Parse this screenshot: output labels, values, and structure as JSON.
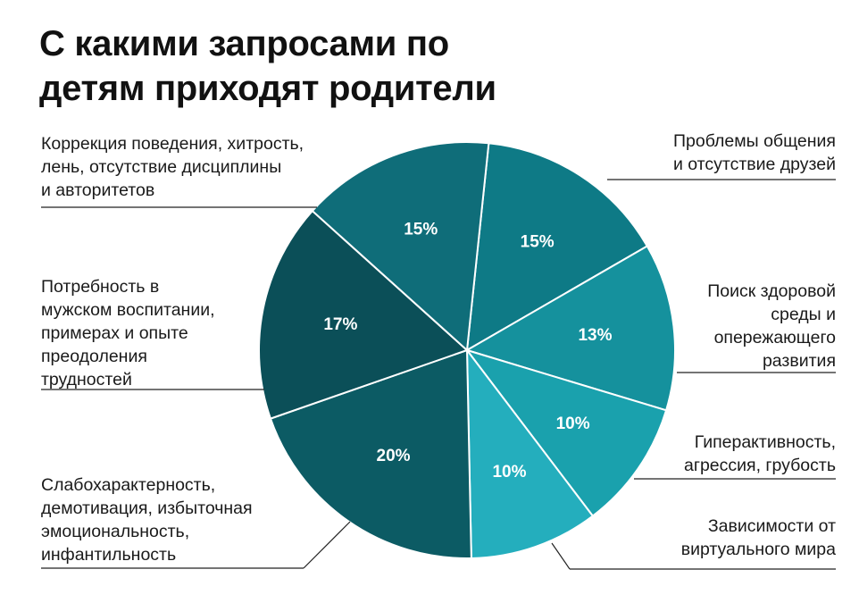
{
  "chart_data": {
    "type": "pie",
    "title": [
      "С какими запросами по",
      "детям приходят родители"
    ],
    "slices": [
      {
        "lines": [
          "Проблемы общения",
          "и отсутствие друзей"
        ],
        "value": 15,
        "display": "15%",
        "color": "#0e7a86",
        "side": "right"
      },
      {
        "lines": [
          "Поиск здоровой",
          "среды и",
          "опережающего",
          "развития"
        ],
        "value": 13,
        "display": "13%",
        "color": "#15919d",
        "side": "right"
      },
      {
        "lines": [
          "Гиперактивность,",
          "агрессия, грубость"
        ],
        "value": 10,
        "display": "10%",
        "color": "#1aa1ad",
        "side": "right"
      },
      {
        "lines": [
          "Зависимости от",
          "виртуального мира"
        ],
        "value": 10,
        "display": "10%",
        "color": "#24aebd",
        "side": "right"
      },
      {
        "lines": [
          "Слабохарактерность,",
          "демотивация, избыточная",
          "эмоциональность,",
          "инфантильность"
        ],
        "value": 20,
        "display": "20%",
        "color": "#0c5b64",
        "side": "left"
      },
      {
        "lines": [
          "Потребность в",
          "мужском воспитании,",
          "примерах и опыте",
          "преодоления",
          "трудностей"
        ],
        "value": 17,
        "display": "17%",
        "color": "#0b4f58",
        "side": "left"
      },
      {
        "lines": [
          "Коррекция поведения, хитрость,",
          "лень, отсутствие дисциплины",
          "и авторитетов"
        ],
        "value": 15,
        "display": "15%",
        "color": "#0f6d79",
        "side": "left"
      }
    ]
  }
}
